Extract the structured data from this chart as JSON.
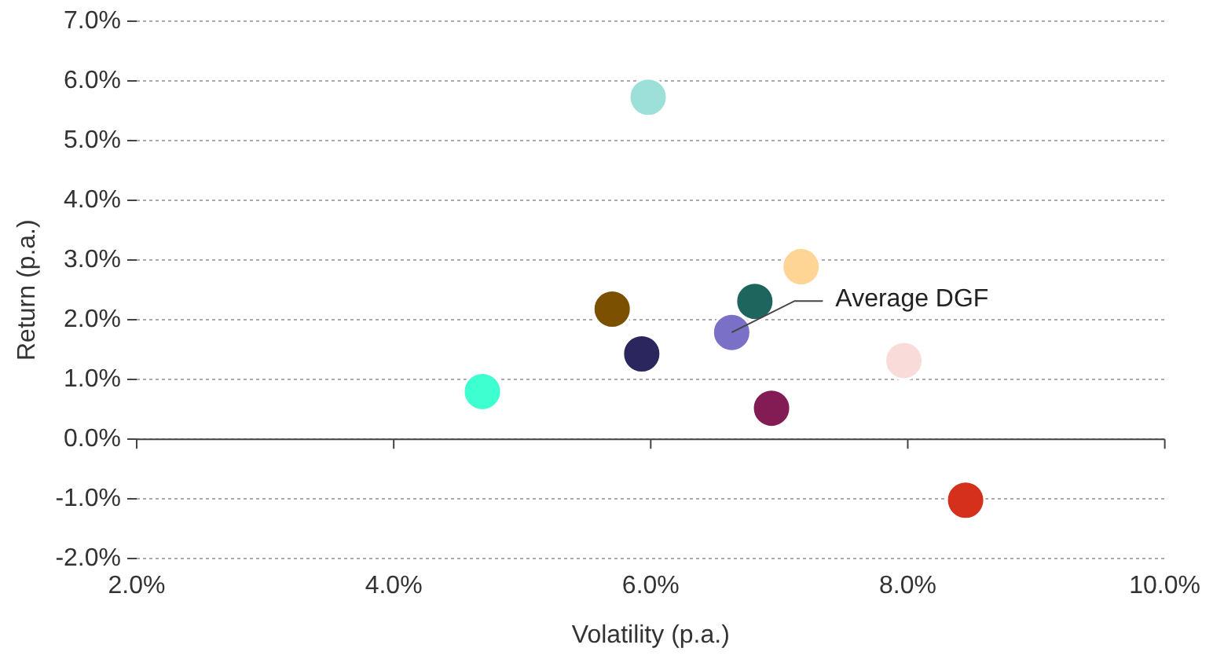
{
  "chart_data": {
    "type": "scatter",
    "xlabel": "Volatility (p.a.)",
    "ylabel": "Return (p.a.)",
    "x": [
      5.98,
      4.69,
      5.7,
      5.93,
      6.63,
      6.81,
      7.17,
      6.94,
      7.97,
      8.45
    ],
    "values": [
      5.73,
      0.8,
      2.18,
      1.43,
      1.79,
      2.31,
      2.89,
      0.52,
      1.32,
      -1.02
    ],
    "colors": [
      "#9de0da",
      "#3effd0",
      "#7b5000",
      "#2b275e",
      "#7b70c8",
      "#1e665d",
      "#ffd595",
      "#831c55",
      "#f9dcd9",
      "#d4301c"
    ],
    "marker": "circle",
    "xlim": [
      2,
      10
    ],
    "xticks": [
      {
        "value": 2,
        "label": "2.0%"
      },
      {
        "value": 4,
        "label": "4.0%"
      },
      {
        "value": 6,
        "label": "6.0%"
      },
      {
        "value": 8,
        "label": "8.0%"
      },
      {
        "value": 10,
        "label": "10.0%"
      }
    ],
    "ylim": [
      -2,
      7
    ],
    "yticks": [
      {
        "value": -2,
        "label": "-2.0%"
      },
      {
        "value": -1,
        "label": "-1.0%"
      },
      {
        "value": 0,
        "label": "0.0%"
      },
      {
        "value": 1,
        "label": "1.0%"
      },
      {
        "value": 2,
        "label": "2.0%"
      },
      {
        "value": 3,
        "label": "3.0%"
      },
      {
        "value": 4,
        "label": "4.0%"
      },
      {
        "value": 5,
        "label": "5.0%"
      },
      {
        "value": 6,
        "label": "6.0%"
      },
      {
        "value": 7,
        "label": "7.0%"
      }
    ],
    "grid": "y",
    "annotations": [
      {
        "text": "Average DGF",
        "x": 6.63,
        "y": 1.79
      }
    ]
  }
}
